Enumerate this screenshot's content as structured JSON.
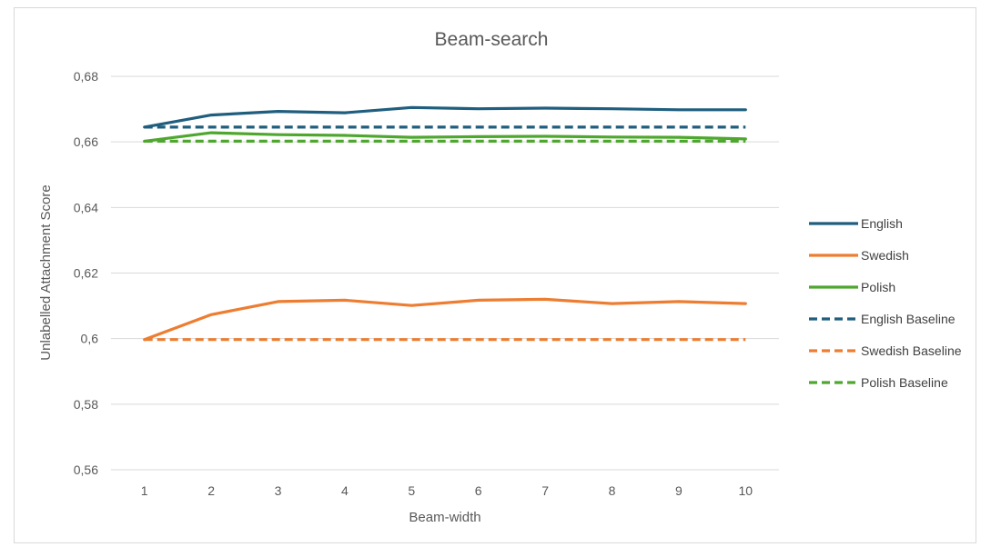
{
  "chart_data": {
    "type": "line",
    "title": "Beam-search",
    "xlabel": "Beam-width",
    "ylabel": "Unlabelled Attachment Score",
    "x": [
      1,
      2,
      3,
      4,
      5,
      6,
      7,
      8,
      9,
      10
    ],
    "ylim": [
      0.56,
      0.68
    ],
    "yticks": [
      "0,56",
      "0,58",
      "0,6",
      "0,62",
      "0,64",
      "0,66",
      "0,68"
    ],
    "yticks_values": [
      0.56,
      0.58,
      0.6,
      0.62,
      0.64,
      0.66,
      0.68
    ],
    "grid": true,
    "legend_position": "right",
    "series": [
      {
        "name": "English",
        "color": "#1f5e7e",
        "dashed": false,
        "values": [
          0.6645,
          0.6682,
          0.6693,
          0.6689,
          0.6705,
          0.6701,
          0.6703,
          0.6701,
          0.6698,
          0.6698
        ]
      },
      {
        "name": "Swedish",
        "color": "#ed7d31",
        "dashed": false,
        "values": [
          0.5997,
          0.6073,
          0.6113,
          0.6117,
          0.6101,
          0.6117,
          0.612,
          0.6107,
          0.6113,
          0.6107
        ]
      },
      {
        "name": "Polish",
        "color": "#4ea72e",
        "dashed": false,
        "values": [
          0.6602,
          0.6628,
          0.6622,
          0.662,
          0.6614,
          0.6616,
          0.6617,
          0.6615,
          0.6614,
          0.6609
        ]
      },
      {
        "name": "English Baseline",
        "color": "#1f5e7e",
        "dashed": true,
        "values": [
          0.6645,
          0.6645,
          0.6645,
          0.6645,
          0.6645,
          0.6645,
          0.6645,
          0.6645,
          0.6645,
          0.6645
        ]
      },
      {
        "name": "Swedish Baseline",
        "color": "#ed7d31",
        "dashed": true,
        "values": [
          0.5997,
          0.5997,
          0.5997,
          0.5997,
          0.5997,
          0.5997,
          0.5997,
          0.5997,
          0.5997,
          0.5997
        ]
      },
      {
        "name": "Polish Baseline",
        "color": "#4ea72e",
        "dashed": true,
        "values": [
          0.6602,
          0.6602,
          0.6602,
          0.6602,
          0.6602,
          0.6602,
          0.6602,
          0.6602,
          0.6602,
          0.6602
        ]
      }
    ]
  }
}
